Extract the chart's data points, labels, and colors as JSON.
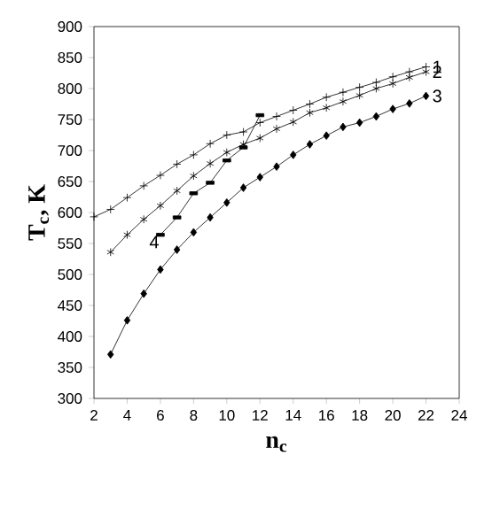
{
  "chart_data": {
    "type": "line",
    "xlabel": "n$_{c}$",
    "ylabel": "T$_{c}$, K",
    "xlim": [
      2,
      24
    ],
    "ylim": [
      300,
      900
    ],
    "xticks": [
      2,
      4,
      6,
      8,
      10,
      12,
      14,
      16,
      18,
      20,
      22,
      24
    ],
    "yticks": [
      300,
      350,
      400,
      450,
      500,
      550,
      600,
      650,
      700,
      750,
      800,
      850,
      900
    ],
    "grid": false,
    "line_style": "solid",
    "series": [
      {
        "name": "1",
        "color": "#000000",
        "marker": "cross",
        "x": [
          2,
          3,
          4,
          5,
          6,
          7,
          8,
          9,
          10,
          11,
          12,
          13,
          14,
          15,
          16,
          17,
          18,
          19,
          20,
          21,
          22
        ],
        "values": [
          593,
          605,
          624,
          643,
          660,
          678,
          693,
          711,
          725,
          730,
          745,
          755,
          765,
          775,
          786,
          794,
          802,
          810,
          819,
          827,
          835
        ]
      },
      {
        "name": "2",
        "color": "#000000",
        "marker": "cross",
        "x": [
          3,
          4,
          5,
          6,
          7,
          8,
          9,
          10,
          11,
          12,
          13,
          14,
          15,
          16,
          17,
          18,
          19,
          20,
          21,
          22
        ],
        "values": [
          536,
          564,
          589,
          611,
          635,
          659,
          679,
          697,
          710,
          720,
          735,
          746,
          761,
          769,
          779,
          789,
          800,
          808,
          818,
          827
        ]
      },
      {
        "name": "3",
        "color": "#000000",
        "marker": "diamond",
        "x": [
          3,
          4,
          5,
          6,
          7,
          8,
          9,
          10,
          11,
          12,
          13,
          14,
          15,
          16,
          17,
          18,
          19,
          20,
          21,
          22
        ],
        "values": [
          371,
          426,
          469,
          508,
          540,
          568,
          592,
          616,
          640,
          657,
          674,
          693,
          710,
          724,
          738,
          745,
          755,
          767,
          776,
          788
        ]
      },
      {
        "name": "4",
        "color": "#000000",
        "marker": "square",
        "x": [
          6,
          7,
          8,
          9,
          10,
          11,
          12
        ],
        "values": [
          564,
          592,
          631,
          648,
          684,
          705,
          757
        ]
      }
    ]
  }
}
